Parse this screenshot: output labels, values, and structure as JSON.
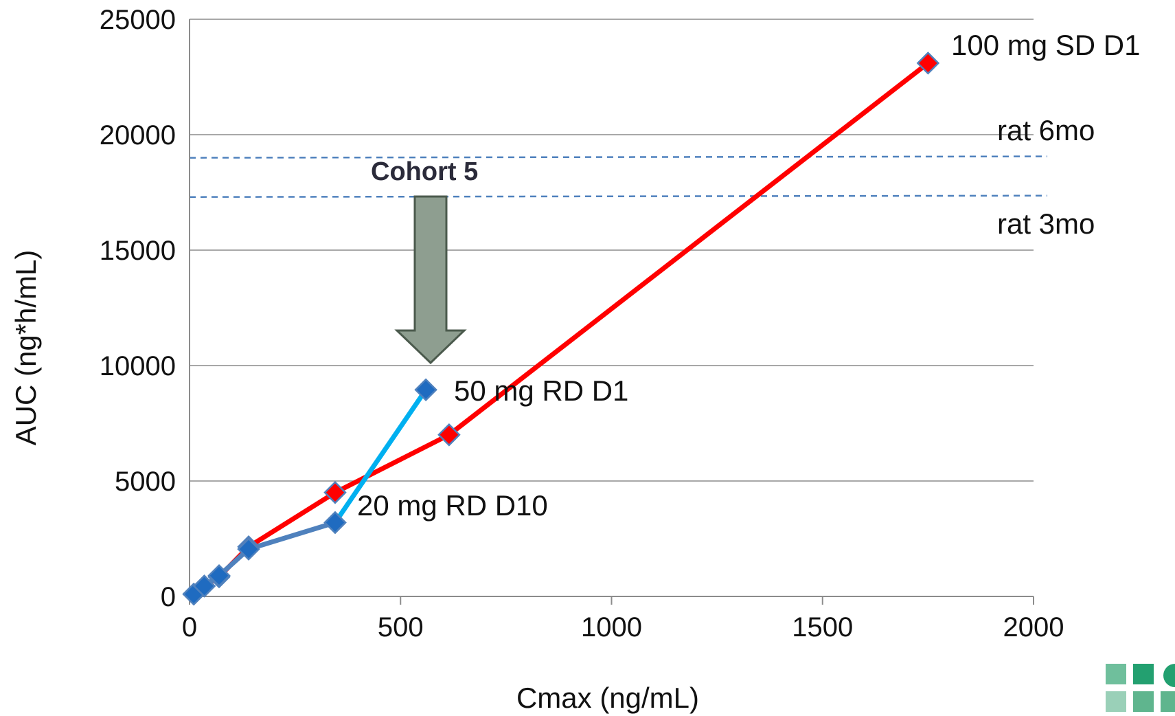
{
  "chart_data": {
    "type": "line",
    "xlabel": "Cmax (ng/mL)",
    "ylabel": "AUC (ng*h/mL)",
    "xlim": [
      0,
      2000
    ],
    "ylim": [
      0,
      25000
    ],
    "xticks": [
      "0",
      "500",
      "1000",
      "1500",
      "2000"
    ],
    "yticks": [
      "0",
      "5000",
      "10000",
      "15000",
      "20000",
      "25000"
    ],
    "grid": "horizontal",
    "series": [
      {
        "color": "#ff0000",
        "marker": "diamond",
        "marker_color": "#ff0000",
        "points": [
          {
            "x": 10,
            "y": 100
          },
          {
            "x": 35,
            "y": 450
          },
          {
            "x": 70,
            "y": 850
          },
          {
            "x": 140,
            "y": 2150
          },
          {
            "x": 345,
            "y": 4500
          },
          {
            "x": 615,
            "y": 7000
          },
          {
            "x": 1750,
            "y": 23100
          }
        ]
      },
      {
        "color": "#4f81bd",
        "marker": "diamond",
        "marker_color": "#1f6bc0",
        "points": [
          {
            "x": 10,
            "y": 100
          },
          {
            "x": 35,
            "y": 450
          },
          {
            "x": 70,
            "y": 900
          },
          {
            "x": 140,
            "y": 2050
          },
          {
            "x": 345,
            "y": 3200
          }
        ]
      },
      {
        "color": "#00b0f0",
        "marker": "diamond",
        "marker_color": "#1f6bc0",
        "points": [
          {
            "x": 345,
            "y": 3200
          },
          {
            "x": 560,
            "y": 8950
          }
        ]
      }
    ],
    "reference_lines": [
      {
        "label": "rat 6mo",
        "y": 19000,
        "color": "#4f81bd",
        "style": "dashed"
      },
      {
        "label": "rat 3mo",
        "y": 17300,
        "color": "#4f81bd",
        "style": "dashed"
      }
    ],
    "annotations": [
      {
        "text": "100 mg SD D1",
        "x": 1750,
        "y": 23100
      },
      {
        "text": "50 mg RD D1",
        "x": 560,
        "y": 8950
      },
      {
        "text": "20 mg RD D10",
        "x": 345,
        "y": 3200
      },
      {
        "text": "Cohort 5",
        "x": 560,
        "y": 17300
      }
    ]
  }
}
